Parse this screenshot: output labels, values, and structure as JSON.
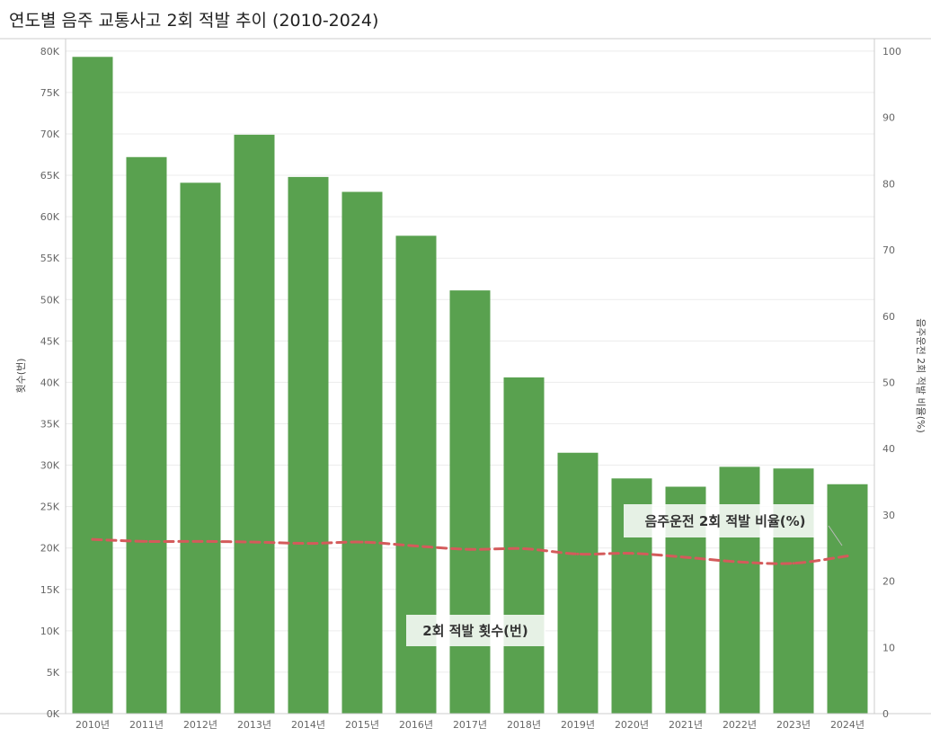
{
  "title": "연도별 음주 교통사고 2회 적발 추이 (2010-2024)",
  "colors": {
    "bar": "#59A14F",
    "line": "#D45B5B",
    "grid": "#ececec",
    "axis": "#cccccc"
  },
  "chart_data": {
    "type": "bar",
    "categories": [
      "2010년",
      "2011년",
      "2012년",
      "2013년",
      "2014년",
      "2015년",
      "2016년",
      "2017년",
      "2018년",
      "2019년",
      "2020년",
      "2021년",
      "2022년",
      "2023년",
      "2024년"
    ],
    "series": [
      {
        "name": "2회 적발 횟수(번)",
        "type": "bar",
        "axis": "left",
        "values": [
          79300,
          67200,
          64100,
          69900,
          64800,
          63000,
          57700,
          51100,
          40600,
          31500,
          28400,
          27400,
          29800,
          29600,
          27700
        ]
      },
      {
        "name": "음주운전 2회 적발 비율(%)",
        "type": "line",
        "axis": "right",
        "style": "dashed",
        "values": [
          26.3,
          26.0,
          26.0,
          25.9,
          25.7,
          25.9,
          25.3,
          24.8,
          24.9,
          24.1,
          24.2,
          23.6,
          22.9,
          22.7,
          23.8
        ]
      }
    ],
    "ylabel": "횟수(번)",
    "y2label": "음주운전 2회 적발 비율(%)",
    "ylim": [
      0,
      81500
    ],
    "y2lim": [
      0,
      101.9
    ],
    "yticks": [
      0,
      5000,
      10000,
      15000,
      20000,
      25000,
      30000,
      35000,
      40000,
      45000,
      50000,
      55000,
      60000,
      65000,
      70000,
      75000,
      80000
    ],
    "ytick_labels": [
      "0K",
      "5K",
      "10K",
      "15K",
      "20K",
      "25K",
      "30K",
      "35K",
      "40K",
      "45K",
      "50K",
      "55K",
      "60K",
      "65K",
      "70K",
      "75K",
      "80K"
    ],
    "y2ticks": [
      0,
      10,
      20,
      30,
      40,
      50,
      60,
      70,
      80,
      90,
      100
    ],
    "y2tick_labels": [
      "0",
      "10",
      "20",
      "30",
      "40",
      "50",
      "60",
      "70",
      "80",
      "90",
      "100"
    ],
    "annotations": [
      "2회 적발 횟수(번)",
      "음주운전 2회 적발 비율(%)"
    ],
    "grid": true
  }
}
